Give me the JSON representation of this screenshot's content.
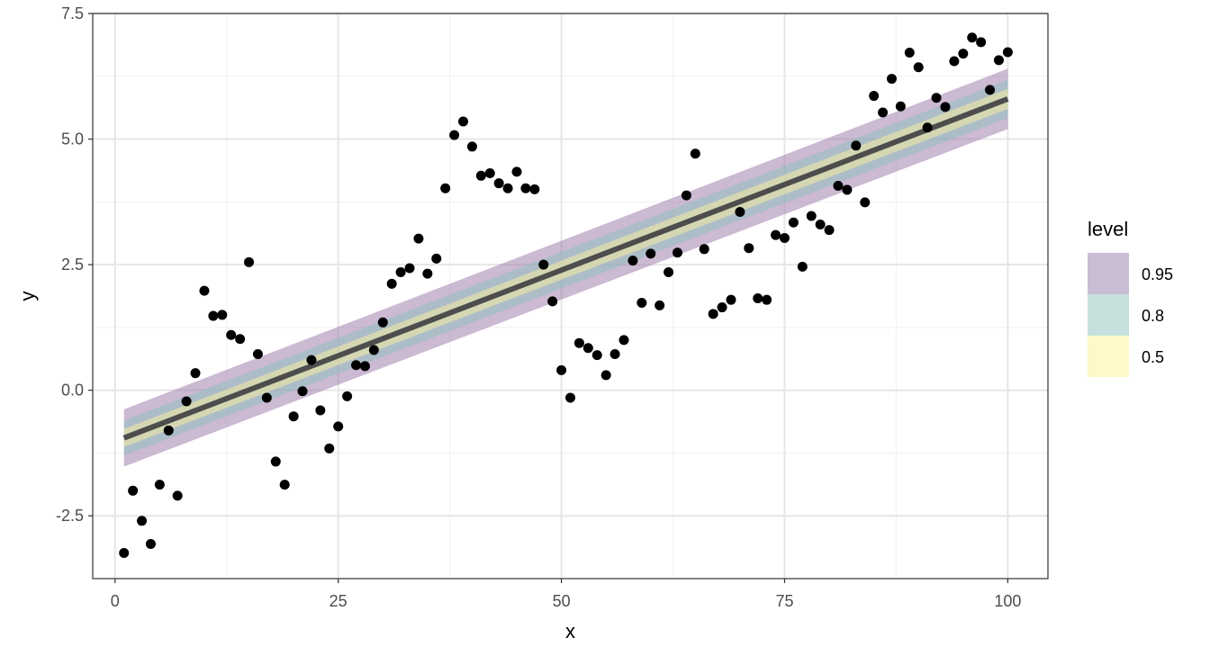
{
  "chart_data": {
    "type": "scatter",
    "title": "",
    "xlabel": "x",
    "ylabel": "y",
    "xlim": [
      -2.5,
      104.5
    ],
    "ylim": [
      -3.75,
      7.5
    ],
    "x_ticks": [
      0,
      25,
      50,
      75,
      100
    ],
    "x_tick_labels": [
      "0",
      "25",
      "50",
      "75",
      "100"
    ],
    "y_ticks": [
      -2.5,
      0,
      2.5,
      5,
      7.5
    ],
    "y_tick_labels": [
      "-2.5",
      "0.0",
      "2.5",
      "5.0",
      "7.5"
    ],
    "grid": true,
    "legend_position": "right",
    "points": {
      "x": [
        1,
        2,
        3,
        4,
        5,
        6,
        7,
        8,
        9,
        10,
        11,
        12,
        13,
        14,
        15,
        16,
        17,
        18,
        19,
        20,
        21,
        22,
        23,
        24,
        25,
        26,
        27,
        28,
        29,
        30,
        31,
        32,
        33,
        34,
        35,
        36,
        37,
        38,
        39,
        40,
        41,
        42,
        43,
        44,
        45,
        46,
        47,
        48,
        49,
        50,
        51,
        52,
        53,
        54,
        55,
        56,
        57,
        58,
        59,
        60,
        61,
        62,
        63,
        64,
        65,
        66,
        67,
        68,
        69,
        70,
        71,
        72,
        73,
        74,
        75,
        76,
        77,
        78,
        79,
        80,
        81,
        82,
        83,
        84,
        85,
        86,
        87,
        88,
        89,
        90,
        91,
        92,
        93,
        94,
        95,
        96,
        97,
        98,
        99,
        100
      ],
      "y": [
        -3.24,
        -2.0,
        -2.6,
        -3.06,
        -1.88,
        -0.8,
        -2.1,
        -0.22,
        0.34,
        1.98,
        1.48,
        1.5,
        1.1,
        1.02,
        2.55,
        0.72,
        -0.15,
        -1.42,
        -1.88,
        -0.52,
        -0.02,
        0.6,
        -0.4,
        -1.16,
        -0.72,
        -0.12,
        0.5,
        0.48,
        0.8,
        1.35,
        2.12,
        2.35,
        2.43,
        3.02,
        2.32,
        2.62,
        4.02,
        5.08,
        5.35,
        4.85,
        4.27,
        4.32,
        4.12,
        4.02,
        4.35,
        4.02,
        4.0,
        2.5,
        1.77,
        0.4,
        -0.15,
        0.94,
        0.84,
        0.7,
        0.3,
        0.72,
        1.0,
        2.58,
        1.74,
        2.72,
        1.69,
        2.35,
        2.74,
        3.88,
        4.71,
        2.81,
        1.52,
        1.65,
        1.8,
        3.55,
        2.83,
        1.83,
        1.8,
        3.09,
        3.03,
        3.34,
        2.46,
        3.47,
        3.3,
        3.19,
        4.07,
        3.99,
        4.87,
        3.74,
        5.86,
        5.53,
        6.2,
        5.65,
        6.72,
        6.43,
        5.23,
        5.82,
        5.64,
        6.55,
        6.7,
        7.02,
        6.93,
        5.98,
        6.57,
        6.73
      ]
    },
    "fit_line": {
      "x": [
        1,
        100
      ],
      "y": [
        -0.95,
        5.8
      ]
    },
    "confidence_bands": [
      {
        "level": "0.95",
        "lower": [
          -1.52,
          5.2
        ],
        "upper": [
          -0.38,
          6.4
        ]
      },
      {
        "level": "0.8",
        "lower": [
          -1.3,
          5.42
        ],
        "upper": [
          -0.6,
          6.18
        ]
      },
      {
        "level": "0.5",
        "lower": [
          -1.13,
          5.6
        ],
        "upper": [
          -0.77,
          6.0
        ]
      }
    ],
    "legend": {
      "title": "level",
      "entries": [
        {
          "label": "0.95",
          "color": "#C9BCD3"
        },
        {
          "label": "0.8",
          "color": "#C6E1DD"
        },
        {
          "label": "0.5",
          "color": "#FFF8C8"
        }
      ]
    },
    "colors": {
      "band_95": "#9A73A5",
      "band_80": "#8BC2BC",
      "band_50": "#FDF2A0",
      "line": "#4D4D4D",
      "points": "#000000"
    }
  }
}
